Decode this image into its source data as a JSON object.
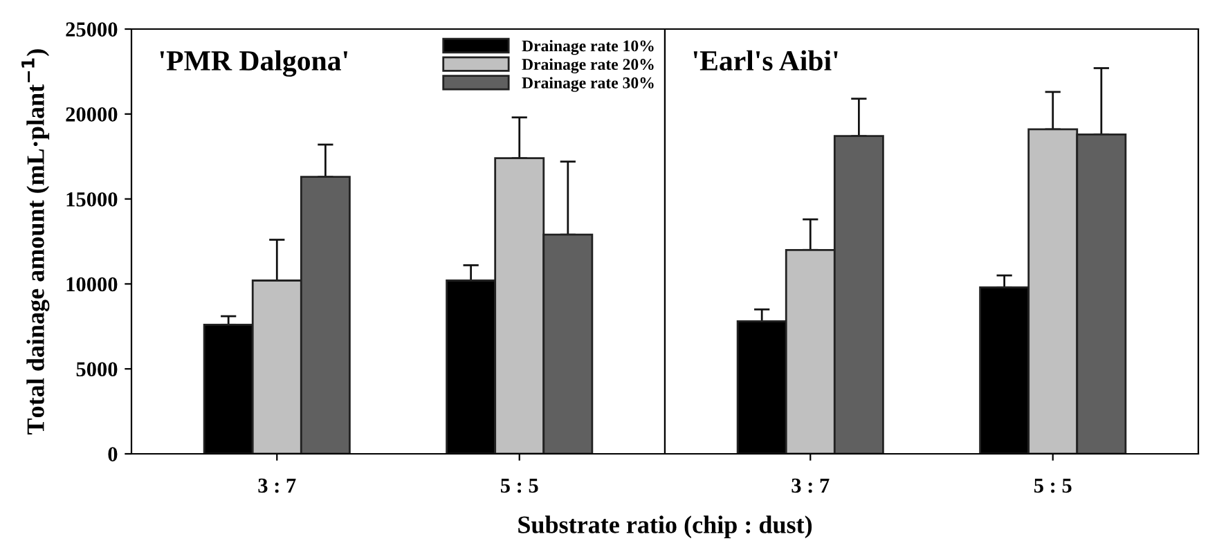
{
  "chart_data": [
    {
      "type": "bar",
      "title": "'PMR Dalgona'",
      "xlabel": "Substrate ratio (chip : dust)",
      "ylabel": "Total dainage amount (mL·plant$^{−1}$)",
      "categories": [
        "3 : 7",
        "5 : 5"
      ],
      "ylim": [
        0,
        25000
      ],
      "yticks": [
        0,
        5000,
        10000,
        15000,
        20000,
        25000
      ],
      "legend": "top right",
      "grid": false,
      "series": [
        {
          "name": "Drainage rate 10%",
          "color": "#000000",
          "values": [
            7600,
            10200
          ],
          "errors": [
            [
              7600,
              8100
            ],
            [
              10200,
              11100
            ]
          ]
        },
        {
          "name": "Drainage rate 20%",
          "color": "#c0c0c0",
          "values": [
            10200,
            17400
          ],
          "errors": [
            [
              10200,
              12600
            ],
            [
              17400,
              19800
            ]
          ]
        },
        {
          "name": "Drainage rate 30%",
          "color": "#606060",
          "values": [
            16300,
            12900
          ],
          "errors": [
            [
              16300,
              18200
            ],
            [
              12900,
              17200
            ]
          ]
        }
      ]
    },
    {
      "type": "bar",
      "title": "'Earl's Aibi'",
      "categories": [
        "3 : 7",
        "5 : 5"
      ],
      "ylim": [
        0,
        25000
      ],
      "tick_labels": "x",
      "grid": false,
      "series": [
        {
          "color": "#000000",
          "values": [
            7800,
            9800
          ],
          "errors": [
            [
              7800,
              8500
            ],
            [
              9800,
              10500
            ]
          ]
        },
        {
          "color": "#c0c0c0",
          "values": [
            12000,
            19100
          ],
          "errors": [
            [
              12000,
              13800
            ],
            [
              19100,
              21300
            ]
          ]
        },
        {
          "color": "#606060",
          "values": [
            18700,
            18800
          ],
          "errors": [
            [
              18700,
              20900
            ],
            [
              18800,
              22700
            ]
          ]
        }
      ]
    }
  ]
}
